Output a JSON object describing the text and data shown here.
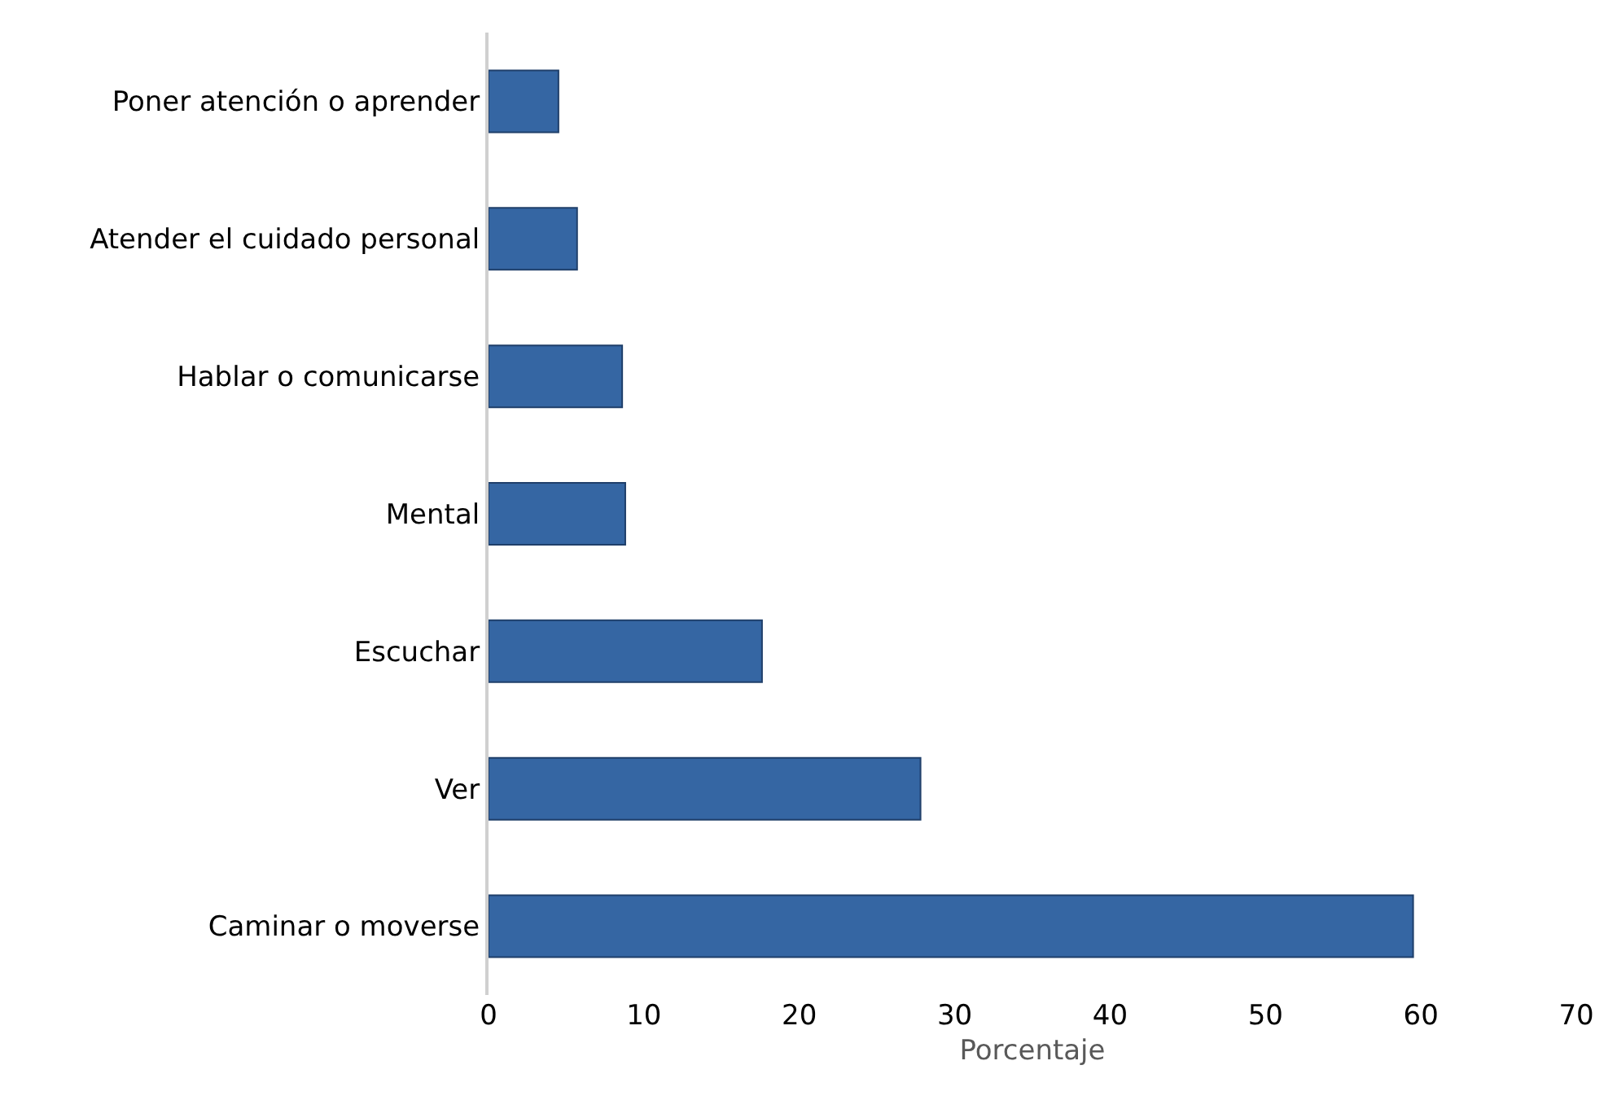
{
  "chart_data": {
    "type": "bar",
    "orientation": "horizontal",
    "categories": [
      "Poner atención o aprender",
      "Atender el cuidado personal",
      "Hablar o comunicarse",
      "Mental",
      "Escuchar",
      "Ver",
      "Caminar o moverse"
    ],
    "values": [
      4.5,
      5.7,
      8.6,
      8.8,
      17.6,
      27.8,
      59.5
    ],
    "color": "#3566a3",
    "xlabel": "Porcentaje",
    "xlim": [
      0,
      70
    ],
    "xticks": [
      0,
      10,
      20,
      30,
      40,
      50,
      60,
      70
    ],
    "grid": false
  }
}
